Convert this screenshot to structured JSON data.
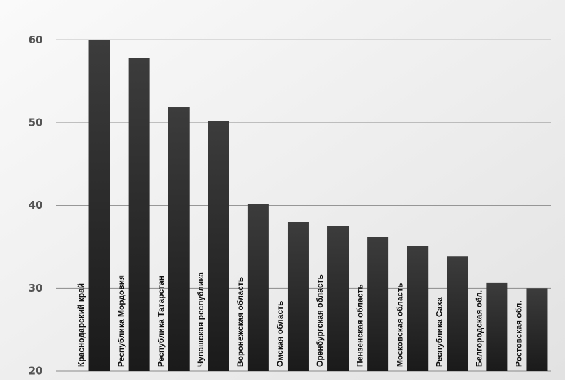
{
  "chart_data": {
    "type": "bar",
    "categories": [
      "Краснодарский край",
      "Республика Мордовия",
      "Республика  Татарстан",
      "Чувашская республика",
      "Воронежская область",
      "Омская область",
      "Оренбургская область",
      "Пензенская область",
      "Московская область",
      "Республика Саха",
      "Белгородская обл.",
      "Ростовская обл."
    ],
    "values": [
      60,
      57.8,
      51.9,
      50.2,
      40.2,
      38.0,
      37.5,
      36.2,
      35.1,
      33.9,
      30.7,
      30.0
    ],
    "color": "#2b2b2b",
    "ylim": [
      20,
      64
    ],
    "yticks": [
      20,
      30,
      40,
      50,
      60
    ],
    "grid": true
  }
}
